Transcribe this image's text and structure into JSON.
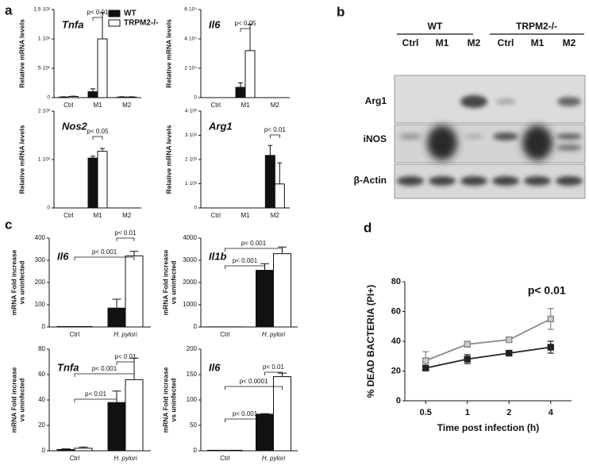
{
  "panel_labels": [
    "a",
    "b",
    "c",
    "d"
  ],
  "blot": {
    "groups": [
      "WT",
      "TRPM2-/-"
    ],
    "lanes": [
      "Ctrl",
      "M1",
      "M2",
      "Ctrl",
      "M1",
      "M2"
    ],
    "rows": [
      "Arg1",
      "iNOS",
      "β-Actin"
    ]
  },
  "chart_data": [
    {
      "type": "bar",
      "title": "Tnfa",
      "y_label": "Relative mRNA levels",
      "categories": [
        "Ctrl",
        "M1",
        "M2"
      ],
      "series": [
        {
          "name": "WT",
          "color": "#111111",
          "values": [
            1,
            10,
            1
          ],
          "errors": [
            0.5,
            5,
            0.5
          ]
        },
        {
          "name": "TRPM2-/-",
          "color": "#ffffff",
          "values": [
            2,
            100,
            1
          ],
          "errors": [
            0.5,
            45,
            0.5
          ]
        }
      ],
      "ylim": [
        0,
        150
      ],
      "yticks": [
        0,
        {
          "value": 50,
          "label": "5·10¹"
        },
        {
          "value": 100,
          "label": "1·10²"
        },
        {
          "value": 150,
          "label": "1.5·10²"
        }
      ],
      "annotations": [
        "p< 0.01"
      ]
    },
    {
      "type": "bar",
      "title": "Il6",
      "y_label": "Relative mRNA levels",
      "categories": [
        "Ctrl",
        "M1",
        "M2"
      ],
      "series": [
        {
          "color": "#111111",
          "values": [
            0,
            7000,
            0
          ],
          "errors": [
            0,
            3000,
            0
          ]
        },
        {
          "color": "#ffffff",
          "values": [
            0,
            32000,
            0
          ],
          "errors": [
            0,
            18000,
            0
          ]
        }
      ],
      "ylim": [
        0,
        60000
      ],
      "yticks": [
        0,
        {
          "value": 20000,
          "label": "2·10⁴"
        },
        {
          "value": 40000,
          "label": "4·10⁴"
        },
        {
          "value": 60000,
          "label": "6·10⁴"
        }
      ],
      "annotations": [
        "p< 0.05"
      ]
    },
    {
      "type": "bar",
      "title": "Nos2",
      "y_label": "Relative mRNA levels",
      "categories": [
        "Ctrl",
        "M1",
        "M2"
      ],
      "series": [
        {
          "color": "#111111",
          "values": [
            0,
            1030,
            0
          ],
          "errors": [
            0,
            40,
            0
          ]
        },
        {
          "color": "#ffffff",
          "values": [
            0,
            1170,
            0
          ],
          "errors": [
            0,
            60,
            0
          ]
        }
      ],
      "ylim": [
        0,
        2000
      ],
      "yticks": [
        0,
        {
          "value": 1000,
          "label": "1·10³"
        },
        {
          "value": 2000,
          "label": "2·10³"
        }
      ],
      "annotations": [
        "p< 0.05"
      ]
    },
    {
      "type": "bar",
      "title": "Arg1",
      "y_label": "Relative mRNA levels",
      "categories": [
        "Ctrl",
        "M1",
        "M2"
      ],
      "series": [
        {
          "color": "#111111",
          "values": [
            0,
            0,
            2170
          ],
          "errors": [
            0,
            0,
            410
          ]
        },
        {
          "color": "#ffffff",
          "values": [
            0,
            0,
            990
          ],
          "errors": [
            0,
            0,
            870
          ]
        }
      ],
      "ylim": [
        0,
        4000
      ],
      "yticks": [
        0,
        {
          "value": 1000,
          "label": "1·10³"
        },
        {
          "value": 2000,
          "label": "2·10³"
        },
        {
          "value": 3000,
          "label": "3·10³"
        },
        {
          "value": 4000,
          "label": "4·10³"
        }
      ],
      "annotations": [
        "p< 0.01"
      ]
    },
    {
      "type": "bar",
      "title": "Il6",
      "y_label": [
        "mRNA Fold increase",
        "vs uninfected"
      ],
      "categories": [
        "Ctrl",
        "H. pylori"
      ],
      "series": [
        {
          "color": "#111111",
          "values": [
            2,
            85
          ],
          "errors": [
            0,
            40
          ]
        },
        {
          "color": "#ffffff",
          "values": [
            2,
            320
          ],
          "errors": [
            0,
            20
          ]
        }
      ],
      "ylim": [
        0,
        400
      ],
      "yticks": [
        0,
        100,
        200,
        300,
        400
      ],
      "annotations": [
        "p< 0.01",
        "p< 0.001"
      ]
    },
    {
      "type": "bar",
      "title": "Il1b",
      "y_label": [
        "mRNA Fold increase",
        "vs uninfected"
      ],
      "categories": [
        "Ctrl",
        "H. pylori"
      ],
      "series": [
        {
          "color": "#111111",
          "values": [
            5,
            2550
          ],
          "errors": [
            0,
            300
          ]
        },
        {
          "color": "#ffffff",
          "values": [
            5,
            3300
          ],
          "errors": [
            0,
            300
          ]
        }
      ],
      "ylim": [
        0,
        4000
      ],
      "yticks": [
        0,
        1000,
        2000,
        3000,
        4000
      ],
      "annotations": [
        "p< 0.001",
        "p< 0.001"
      ]
    },
    {
      "type": "bar",
      "title": "Tnfa",
      "y_label": [
        "mRNA Fold increase",
        "vs uninfected"
      ],
      "categories": [
        "Ctrl",
        "H. pylori"
      ],
      "series": [
        {
          "color": "#111111",
          "values": [
            1,
            38
          ],
          "errors": [
            0.5,
            9
          ]
        },
        {
          "color": "#ffffff",
          "values": [
            2,
            56
          ],
          "errors": [
            1,
            17
          ]
        }
      ],
      "ylim": [
        0,
        80
      ],
      "yticks": [
        0,
        20,
        40,
        60,
        80
      ],
      "annotations": [
        "p< 0.01",
        "p< 0.001",
        "p< 0.01"
      ]
    },
    {
      "type": "bar",
      "title": "Il6",
      "y_label": [
        "mRNA Fold increase",
        "vs uninfected"
      ],
      "categories": [
        "Ctrl",
        "H. pylori"
      ],
      "series": [
        {
          "color": "#111111",
          "values": [
            1,
            72
          ],
          "errors": [
            0,
            1
          ]
        },
        {
          "color": "#ffffff",
          "values": [
            1,
            146
          ],
          "errors": [
            0,
            7
          ]
        }
      ],
      "ylim": [
        0,
        200
      ],
      "yticks": [
        0,
        50,
        100,
        150,
        200
      ],
      "annotations": [
        "p< 0.01",
        "p< 0.0001",
        "p< 0.001"
      ]
    },
    {
      "type": "line",
      "y_label": "% DEAD BACTERIA (PI+)",
      "x_label": "Time post infection (h)",
      "categories": [
        "0.5",
        "1",
        "2",
        "4"
      ],
      "series": [
        {
          "color": "#888888",
          "values": [
            27,
            38,
            41,
            55
          ],
          "errors": [
            6,
            2,
            1,
            7
          ]
        },
        {
          "color": "#222222",
          "values": [
            22,
            28,
            32,
            36
          ],
          "errors": [
            1,
            3,
            1,
            4
          ]
        }
      ],
      "ylim": [
        0,
        80
      ],
      "yticks": [
        0,
        20,
        40,
        60,
        80
      ],
      "annotations": [
        "p< 0.01"
      ]
    }
  ]
}
